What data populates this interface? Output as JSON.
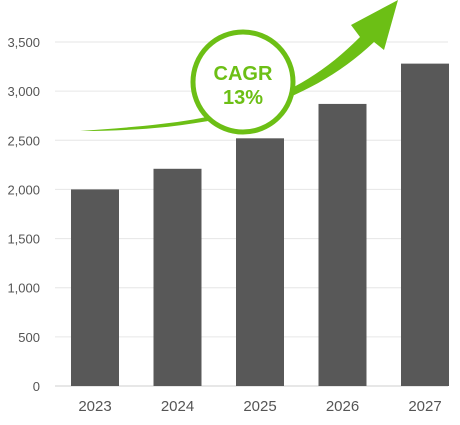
{
  "chart_data": {
    "type": "bar",
    "categories": [
      "2023",
      "2024",
      "2025",
      "2026",
      "2027"
    ],
    "values": [
      2000,
      2210,
      2520,
      2870,
      3280
    ],
    "ylim": [
      0,
      3500
    ],
    "yticks": [
      0,
      500,
      1000,
      1500,
      2000,
      2500,
      3000,
      3500
    ],
    "ytick_labels": [
      "0",
      "500",
      "1,000",
      "1,500",
      "2,000",
      "2,500",
      "3,000",
      "3,500"
    ],
    "grid": true,
    "title": "",
    "xlabel": "",
    "ylabel": "",
    "bar_color": "#585858",
    "annotation": {
      "label": "CAGR",
      "value": "13%",
      "color": "#6cbf15"
    }
  }
}
